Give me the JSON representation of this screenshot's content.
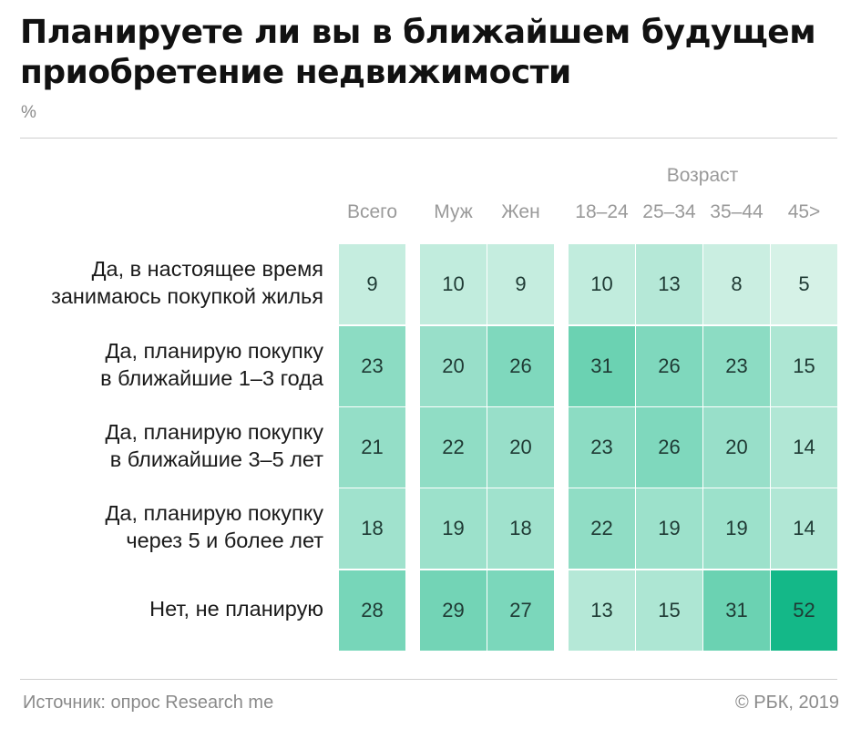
{
  "title": "Планируете ли вы в ближайшем будущем приобретение недвижимости",
  "unit": "%",
  "group_label": "Возраст",
  "source": "Источник: опрос Research me",
  "copyright": "© РБК, 2019",
  "colors": {
    "min": "#d6f2e7",
    "max": "#14b888",
    "text": "#1f3a34",
    "muted": "#8a8a8a"
  },
  "chart_data": {
    "type": "heatmap",
    "title": "Планируете ли вы в ближайшем будущем приобретение недвижимости",
    "unit": "%",
    "columns": [
      "Всего",
      "Муж",
      "Жен",
      "18–24",
      "25–34",
      "35–44",
      "45>"
    ],
    "column_groups": [
      {
        "label": "",
        "columns": [
          "Всего"
        ]
      },
      {
        "label": "",
        "columns": [
          "Муж",
          "Жен"
        ]
      },
      {
        "label": "Возраст",
        "columns": [
          "18–24",
          "25–34",
          "35–44",
          "45>"
        ]
      }
    ],
    "rows": [
      "Да, в настоящее время\nзанимаюсь покупкой жилья",
      "Да, планирую покупку\nв ближайшие 1–3 года",
      "Да, планирую покупку\nв ближайшие 3–5 лет",
      "Да, планирую покупку\nчерез 5 и более лет",
      "Нет, не планирую"
    ],
    "values": [
      [
        9,
        10,
        9,
        10,
        13,
        8,
        5
      ],
      [
        23,
        20,
        26,
        31,
        26,
        23,
        15
      ],
      [
        21,
        22,
        20,
        23,
        26,
        20,
        14
      ],
      [
        18,
        19,
        18,
        22,
        19,
        19,
        14
      ],
      [
        28,
        29,
        27,
        13,
        15,
        31,
        52
      ]
    ]
  }
}
